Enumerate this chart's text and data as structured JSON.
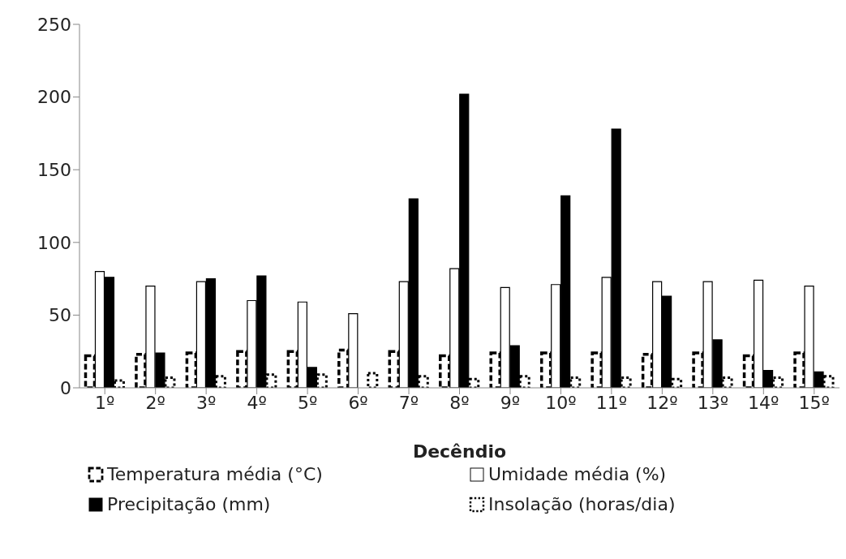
{
  "chart_data": {
    "type": "bar",
    "xlabel": "Decêndio",
    "categories": [
      "1º",
      "2º",
      "3º",
      "4º",
      "5º",
      "6º",
      "7º",
      "8º",
      "9º",
      "10º",
      "11º",
      "12º",
      "13º",
      "14º",
      "15º"
    ],
    "series": [
      {
        "name": "Temperatura média (°C)",
        "color": "#ffffff",
        "line_style": "dashed",
        "values": [
          22,
          23,
          24,
          25,
          25,
          26,
          25,
          22,
          24,
          24,
          24,
          23,
          24,
          22,
          24
        ]
      },
      {
        "name": "Umidade média (%)",
        "color": "#ffffff",
        "line_style": "solid",
        "values": [
          80,
          70,
          73,
          60,
          59,
          51,
          73,
          82,
          69,
          71,
          76,
          73,
          73,
          74,
          70
        ]
      },
      {
        "name": "Precipitação (mm)",
        "color": "#000000",
        "line_style": "solid",
        "values": [
          76,
          24,
          75,
          77,
          14,
          0,
          130,
          202,
          29,
          132,
          178,
          63,
          33,
          12,
          11
        ]
      },
      {
        "name": "Insolação (horas/dia)",
        "color": "#ffffff",
        "line_style": "dotted",
        "values": [
          5,
          7,
          8,
          9,
          9,
          10,
          8,
          6,
          8,
          7,
          7,
          6,
          7,
          7,
          8
        ]
      }
    ],
    "ylim": [
      0,
      250
    ],
    "yticks": [
      0,
      50,
      100,
      150,
      200,
      250
    ],
    "grid": false,
    "legend": "bottom"
  }
}
